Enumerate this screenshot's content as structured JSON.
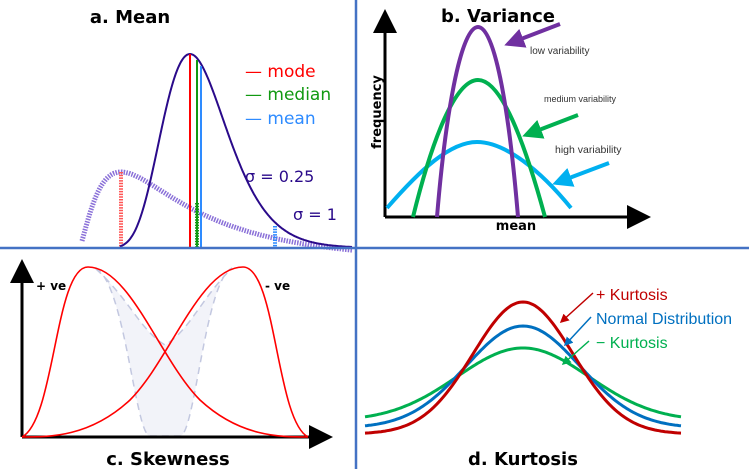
{
  "panels": {
    "mean": {
      "title": "a. Mean",
      "legend": [
        {
          "label": "— mode",
          "color": "#ff0000"
        },
        {
          "label": "— median",
          "color": "#119911"
        },
        {
          "label": "— mean",
          "color": "#2e8bff"
        }
      ],
      "sigma_small": "σ = 0.25",
      "sigma_large": "σ = 1",
      "curve_color": "#2a0a8a",
      "dotted_color": "#8a70d8"
    },
    "variance": {
      "title": "b. Variance",
      "y_label": "frequency",
      "x_label": "mean",
      "low": "low variability",
      "medium": "medium variability",
      "high": "high variability",
      "colors": {
        "low": "#7030a0",
        "medium": "#00b050",
        "high": "#00b0f0"
      }
    },
    "skewness": {
      "title": "c. Skewness",
      "positive": "+ ve",
      "negative": "- ve",
      "curve_color": "#ff0000"
    },
    "kurtosis": {
      "title": "d. Kurtosis",
      "positive": "+ Kurtosis",
      "normal": "Normal Distribution",
      "negative": "− Kurtosis",
      "colors": {
        "positive": "#c00000",
        "normal": "#0070c0",
        "negative": "#00b050"
      }
    }
  },
  "divider_color": "#4472c4"
}
